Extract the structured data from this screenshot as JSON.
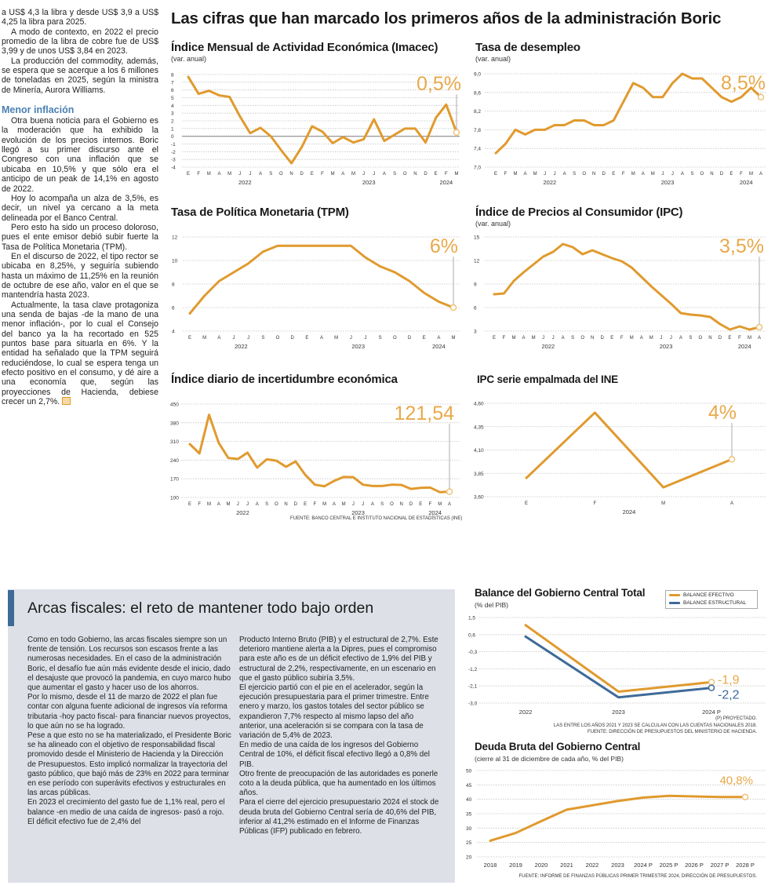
{
  "left_column": {
    "paragraphs_before": [
      "a US$ 4,3 la libra y desde US$ 3,9 a US$ 4,25 la libra para 2025.",
      "A modo de contexto, en 2022 el precio promedio de la libra de cobre fue de US$ 3,99 y de unos US$ 3,84 en 2023.",
      "La producción del commodity, además, se espera que se acerque a los 6 millones de toneladas en 2025, según la ministra de Minería, Aurora Williams."
    ],
    "subheading": "Menor inflación",
    "paragraphs_after": [
      "Otra buena noticia para el Gobierno es la moderación que ha exhibido la evolución de los precios internos. Boric llegó a su primer discurso ante el Congreso con una inflación que se ubicaba en 10,5% y que sólo era el anticipo de un peak de 14,1% en agosto de 2022.",
      "Hoy lo acompaña un alza de 3,5%, es decir, un nivel ya cercano a la meta delineada por el Banco Central.",
      "Pero esto ha sido un proceso doloroso, pues el ente emisor debió subir fuerte la Tasa de Política Monetaria (TPM).",
      "En el discurso de 2022, el tipo rector se ubicaba en 8,25%, y seguiría subiendo hasta un máximo de 11,25% en la reunión de octubre de ese año, valor en el que se mantendría hasta 2023.",
      "Actualmente, la tasa clave protagoniza una senda de bajas -de la mano de una menor inflación-, por lo cual el Consejo del banco ya la ha recortado en 525 puntos base para situarla en 6%. Y la entidad ha señalado que la TPM seguirá reduciéndose, lo cual se espera tenga un efecto positivo en el consumo, y dé aire a una economía que, según las proyecciones de Hacienda, debiese crecer un 2,7%."
    ]
  },
  "headline": "Las cifras que han marcado los primeros años de la administración Boric",
  "source_top": "FUENTE: BANCO CENTRAL E INSTITUTO NACIONAL DE ESTADÍSTICAS (INE)",
  "fiscal": {
    "title": "Arcas fiscales: el reto de mantener todo bajo orden",
    "col1": [
      "Como en todo Gobierno, las arcas fiscales siempre son un frente de tensión. Los recursos son escasos frente a las numerosas necesidades. En el caso de la administración Boric, el desafío fue aún más evidente desde el inicio, dado el desajuste que provocó la pandemia, en cuyo marco hubo que aumentar el gasto y hacer uso de los ahorros.",
      "Por lo mismo, desde el 11 de marzo de 2022 el plan fue contar con alguna fuente adicional de ingresos vía reforma tributaria -hoy pacto fiscal- para financiar nuevos proyectos, lo que aún no se ha logrado.",
      "Pese a que esto no se ha materializado, el Presidente Boric se ha alineado con el objetivo de responsabilidad fiscal promovido desde el Ministerio de Hacienda y la Dirección de Presupuestos. Esto implicó normalizar la trayectoria del gasto público, que bajó más de 23% en 2022 para terminar en ese período con superávits efectivos y estructurales en las arcas públicas.",
      "En 2023 el crecimiento del gasto fue de 1,1% real, pero el balance -en medio de una caída de ingresos- pasó a rojo. El déficit efectivo fue de 2,4% del"
    ],
    "col2": [
      "Producto Interno Bruto (PIB) y el estructural de 2,7%. Este deterioro mantiene alerta a la Dipres, pues el compromiso para este año es de un déficit efectivo de 1,9% del PIB y estructural de 2,2%, respectivamente, en un escenario en que el gasto público subiría 3,5%.",
      "El ejercicio partió con el pie en el acelerador, según la ejecución presupuestaria para el primer trimestre. Entre enero y marzo, los gastos totales del sector público se expandieron 7,7% respecto al mismo lapso del año anterior, una aceleración si se compara con la tasa de variación de 5,4% de 2023.",
      "En medio de una caída de los ingresos del Gobierno Central de 10%, el déficit fiscal efectivo llegó a 0,8% del PIB.",
      "Otro frente de preocupación de las autoridades es ponerle coto a la deuda pública, que ha aumentado en los últimos años.",
      "Para el cierre del ejercicio presupuestario 2024 el stock de deuda bruta del Gobierno Central sería de 40,6% del PIB, inferior al 41,2% estimado en el Informe de Finanzas Públicas (IFP) publicado en febrero."
    ]
  },
  "balance_notes": [
    "(P) PROYECTADO.",
    "LAS ENTRE LOS AÑOS 2021 Y 2023 SE CALCULAN  CON LAS CUENTAS NACIONALES 2018.",
    "FUENTE: DIRECCIÓN DE PRESUPUESTOS DEL MINISTERIO DE HACIENDA."
  ],
  "deuda_source": "FUENTE: INFORME DE FINANZAS PÚBLICAS PRIMER TRIMESTRE 2024, DIRECCIÓN DE PRESUPUESTOS.",
  "colors": {
    "orange": "#e09a2e",
    "blue": "#3e6a98",
    "callout": "#e8a94a",
    "grid": "#bdbdbd",
    "subheading": "#4a80b3",
    "box": "#dde1e7"
  },
  "chart_data": [
    {
      "id": "imacec",
      "type": "line",
      "title": "Índice Mensual de Actividad Económica (Imacec)",
      "subtitle": "(var. anual)",
      "categories": [
        "E",
        "F",
        "M",
        "A",
        "M",
        "J",
        "J",
        "A",
        "S",
        "O",
        "N",
        "D",
        "E",
        "F",
        "M",
        "A",
        "M",
        "J",
        "J",
        "A",
        "S",
        "O",
        "N",
        "D",
        "E",
        "F",
        "M"
      ],
      "x_groups": [
        {
          "label": "2022",
          "from": 0,
          "to": 11
        },
        {
          "label": "2023",
          "from": 12,
          "to": 23
        },
        {
          "label": "2024",
          "from": 24,
          "to": 26
        }
      ],
      "yticks": [
        "8",
        "7",
        "6",
        "5",
        "4",
        "3",
        "2",
        "1",
        "0",
        "-1",
        "-2",
        "-3",
        "-4"
      ],
      "ylim": [
        -4,
        8
      ],
      "zero_line": true,
      "grid": true,
      "series": [
        {
          "values": [
            7.7,
            5.5,
            5.9,
            5.3,
            5.1,
            2.6,
            0.4,
            1.1,
            0,
            -1.8,
            -3.5,
            -1.4,
            1.3,
            0.6,
            -0.9,
            -0.1,
            -0.8,
            -0.4,
            2.2,
            -0.6,
            0.2,
            1.0,
            1.0,
            -0.8,
            2.4,
            4.1,
            0.5
          ],
          "color": "#e09a2e"
        }
      ],
      "callout": "0,5%"
    },
    {
      "id": "desempleo",
      "type": "line",
      "title": "Tasa de desempleo",
      "subtitle": "(var. anual)",
      "categories": [
        "E",
        "F",
        "M",
        "A",
        "M",
        "J",
        "J",
        "A",
        "S",
        "O",
        "N",
        "D",
        "E",
        "F",
        "M",
        "A",
        "M",
        "J",
        "J",
        "A",
        "S",
        "O",
        "N",
        "D",
        "E",
        "F",
        "M",
        "A"
      ],
      "x_groups": [
        {
          "label": "2022",
          "from": 0,
          "to": 11
        },
        {
          "label": "2023",
          "from": 12,
          "to": 23
        },
        {
          "label": "2024",
          "from": 24,
          "to": 27
        }
      ],
      "yticks": [
        "9,0",
        "8,6",
        "8,2",
        "7,8",
        "7,4",
        "7,0"
      ],
      "ylim": [
        7.0,
        9.0
      ],
      "grid": true,
      "series": [
        {
          "values": [
            7.3,
            7.5,
            7.8,
            7.7,
            7.8,
            7.8,
            7.9,
            7.9,
            8.0,
            8.0,
            7.9,
            7.9,
            8.0,
            8.4,
            8.8,
            8.7,
            8.5,
            8.5,
            8.8,
            9.0,
            8.9,
            8.9,
            8.7,
            8.5,
            8.4,
            8.5,
            8.7,
            8.5
          ],
          "color": "#e09a2e"
        }
      ],
      "callout": "8,5%"
    },
    {
      "id": "tpm",
      "type": "line",
      "title": "Tasa de Política Monetaria (TPM)",
      "subtitle": "",
      "categories": [
        "E",
        "M",
        "A",
        "J",
        "J",
        "S",
        "O",
        "D",
        "E",
        "A",
        "M",
        "J",
        "J",
        "S",
        "O",
        "D",
        "E",
        "A",
        "M"
      ],
      "x_groups": [
        {
          "label": "2022",
          "from": 0,
          "to": 7
        },
        {
          "label": "2023",
          "from": 8,
          "to": 15
        },
        {
          "label": "2024",
          "from": 16,
          "to": 18
        }
      ],
      "yticks": [
        "12",
        "10",
        "8",
        "6",
        "4"
      ],
      "ylim": [
        4,
        12
      ],
      "grid": true,
      "series": [
        {
          "values": [
            5.5,
            7.0,
            8.25,
            9.0,
            9.75,
            10.75,
            11.25,
            11.25,
            11.25,
            11.25,
            11.25,
            11.25,
            10.25,
            9.5,
            9.0,
            8.25,
            7.25,
            6.5,
            6.0
          ],
          "color": "#e09a2e"
        }
      ],
      "callout": "6%"
    },
    {
      "id": "ipc",
      "type": "line",
      "title": "Índice de Precios al Consumidor (IPC)",
      "subtitle": "(var. anual)",
      "categories": [
        "E",
        "F",
        "M",
        "A",
        "M",
        "J",
        "J",
        "A",
        "S",
        "O",
        "N",
        "D",
        "E",
        "F",
        "M",
        "A",
        "M",
        "J",
        "J",
        "A",
        "S",
        "O",
        "N",
        "D",
        "E",
        "F",
        "M",
        "A"
      ],
      "x_groups": [
        {
          "label": "2022",
          "from": 0,
          "to": 11
        },
        {
          "label": "2023",
          "from": 12,
          "to": 23
        },
        {
          "label": "2024",
          "from": 24,
          "to": 27
        }
      ],
      "yticks": [
        "15",
        "12",
        "9",
        "6",
        "3"
      ],
      "ylim": [
        3,
        15
      ],
      "grid": true,
      "series": [
        {
          "values": [
            7.7,
            7.8,
            9.4,
            10.5,
            11.5,
            12.5,
            13.1,
            14.1,
            13.7,
            12.8,
            13.3,
            12.8,
            12.3,
            11.9,
            11.1,
            9.9,
            8.7,
            7.6,
            6.5,
            5.3,
            5.1,
            5.0,
            4.8,
            3.9,
            3.2,
            3.6,
            3.2,
            3.5
          ],
          "color": "#e09a2e"
        }
      ],
      "callout": "3,5%"
    },
    {
      "id": "incertidumbre",
      "type": "line",
      "title": "Índice diario de incertidumbre económica",
      "subtitle": "",
      "categories": [
        "E",
        "F",
        "M",
        "A",
        "M",
        "J",
        "J",
        "A",
        "S",
        "O",
        "N",
        "D",
        "E",
        "F",
        "M",
        "A",
        "M",
        "J",
        "J",
        "A",
        "S",
        "O",
        "N",
        "D",
        "E",
        "F",
        "M",
        "A"
      ],
      "x_groups": [
        {
          "label": "2022",
          "from": 0,
          "to": 11
        },
        {
          "label": "2023",
          "from": 12,
          "to": 23
        },
        {
          "label": "2024",
          "from": 24,
          "to": 27
        }
      ],
      "yticks": [
        "450",
        "380",
        "310",
        "240",
        "170",
        "100"
      ],
      "ylim": [
        100,
        450
      ],
      "grid": true,
      "series": [
        {
          "values": [
            300,
            265,
            410,
            305,
            248,
            244,
            268,
            212,
            243,
            238,
            215,
            235,
            185,
            148,
            142,
            162,
            177,
            176,
            148,
            143,
            143,
            148,
            147,
            132,
            136,
            137,
            120,
            121.54
          ],
          "color": "#e09a2e"
        }
      ],
      "callout": "121,54"
    },
    {
      "id": "empalmada",
      "type": "line",
      "title": "IPC serie empalmada del INE",
      "subtitle": "",
      "categories": [
        "E",
        "F",
        "M",
        "A"
      ],
      "x_groups": [
        {
          "label": "2024",
          "from": 0,
          "to": 3
        }
      ],
      "yticks": [
        "4,60",
        "4,35",
        "4,10",
        "3,85",
        "3,60"
      ],
      "ylim": [
        3.6,
        4.6
      ],
      "grid": true,
      "series": [
        {
          "values": [
            3.8,
            4.5,
            3.7,
            4.0
          ],
          "color": "#e09a2e"
        }
      ],
      "callout": "4%"
    },
    {
      "id": "balance",
      "type": "line",
      "title": "Balance del Gobierno Central Total",
      "subtitle": "(% del PIB)",
      "categories": [
        "2022",
        "2023",
        "2024 P"
      ],
      "x_groups": [],
      "yticks": [
        "1,5",
        "0,6",
        "-0,3",
        "-1,2",
        "-2,1",
        "-3,0"
      ],
      "ylim": [
        -3.0,
        1.5
      ],
      "grid": true,
      "legend": "top-right",
      "series": [
        {
          "name": "BALANCE EFECTIVO",
          "values": [
            1.1,
            -2.4,
            -1.9
          ],
          "color": "#e09a2e",
          "callout": "-1,9"
        },
        {
          "name": "BALANCE ESTRUCTURAL",
          "values": [
            0.5,
            -2.7,
            -2.2
          ],
          "color": "#3e6a98",
          "callout": "-2,2"
        }
      ]
    },
    {
      "id": "deuda",
      "type": "line",
      "title": "Deuda Bruta del Gobierno Central",
      "subtitle": "(cierre al 31 de diciembre de cada año, % del PIB)",
      "categories": [
        "2018",
        "2019",
        "2020",
        "2021",
        "2022",
        "2023",
        "2024 P",
        "2025 P",
        "2026 P",
        "2027 P",
        "2028 P"
      ],
      "x_groups": [],
      "yticks": [
        "50",
        "45",
        "40",
        "35",
        "30",
        "25",
        "20"
      ],
      "ylim": [
        20,
        50
      ],
      "grid": true,
      "series": [
        {
          "values": [
            25.6,
            28.3,
            32.4,
            36.4,
            37.9,
            39.4,
            40.6,
            41.2,
            41.0,
            40.8,
            40.8
          ],
          "color": "#e09a2e"
        }
      ],
      "callout": "40,8%"
    }
  ]
}
